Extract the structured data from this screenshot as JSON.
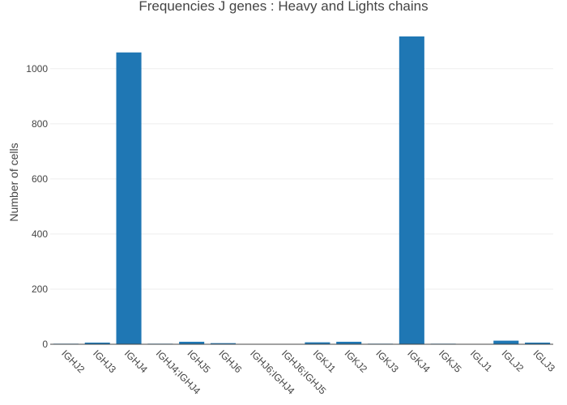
{
  "chart_data": {
    "type": "bar",
    "title": "Frequencies J genes : Heavy and Lights chains",
    "xlabel": "",
    "ylabel": "Number of cells",
    "categories": [
      "IGHJ2",
      "IGHJ3",
      "IGHJ4",
      "IGHJ4;IGHJ4",
      "IGHJ5",
      "IGHJ6",
      "IGHJ6;IGHJ4",
      "IGHJ6;IGHJ5",
      "IGKJ1",
      "IGKJ2",
      "IGKJ3",
      "IGKJ4",
      "IGKJ5",
      "IGLJ1",
      "IGLJ2",
      "IGLJ3"
    ],
    "values": [
      2,
      6,
      1059,
      2,
      9,
      4,
      1,
      1,
      7,
      9,
      2,
      1117,
      2,
      1,
      13,
      6
    ],
    "ylim": [
      0,
      1117
    ],
    "yticks": [
      0,
      200,
      400,
      600,
      800,
      1000
    ],
    "grid": true,
    "legend": "none",
    "colors": {
      "bar": "#1f77b4",
      "grid": "#eeeeee",
      "text": "#444444"
    }
  }
}
